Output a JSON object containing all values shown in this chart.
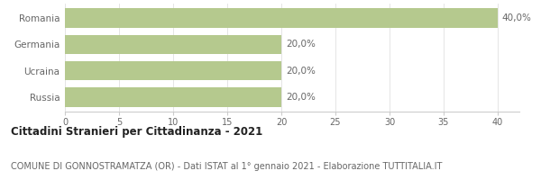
{
  "categories": [
    "Romania",
    "Germania",
    "Ucraina",
    "Russia"
  ],
  "values": [
    40.0,
    20.0,
    20.0,
    20.0
  ],
  "bar_color": "#b5c98e",
  "bar_labels": [
    "40,0%",
    "20,0%",
    "20,0%",
    "20,0%"
  ],
  "xlim": [
    0,
    40
  ],
  "xlim_display": [
    0,
    42
  ],
  "xticks": [
    0,
    5,
    10,
    15,
    20,
    25,
    30,
    35,
    40
  ],
  "title": "Cittadini Stranieri per Cittadinanza - 2021",
  "subtitle": "COMUNE DI GONNOSTRAMATZA (OR) - Dati ISTAT al 1° gennaio 2021 - Elaborazione TUTTITALIA.IT",
  "title_fontsize": 8.5,
  "subtitle_fontsize": 7.0,
  "label_fontsize": 7.5,
  "tick_fontsize": 7.0,
  "ytick_fontsize": 7.5,
  "background_color": "#ffffff",
  "bar_height": 0.75,
  "grid_color": "#e0e0e0",
  "spine_color": "#cccccc",
  "text_color": "#666666",
  "title_color": "#222222"
}
